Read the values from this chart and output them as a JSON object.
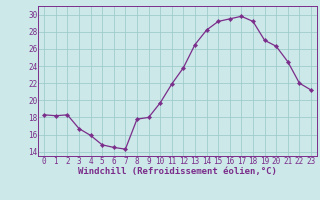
{
  "x": [
    0,
    1,
    2,
    3,
    4,
    5,
    6,
    7,
    8,
    9,
    10,
    11,
    12,
    13,
    14,
    15,
    16,
    17,
    18,
    19,
    20,
    21,
    22,
    23
  ],
  "y": [
    18.3,
    18.2,
    18.3,
    16.7,
    15.9,
    14.8,
    14.5,
    14.3,
    17.8,
    18.0,
    19.7,
    21.9,
    23.8,
    26.5,
    28.2,
    29.2,
    29.5,
    29.8,
    29.2,
    27.0,
    26.3,
    24.5,
    22.0,
    21.2
  ],
  "line_color": "#7B2D8B",
  "marker": "D",
  "marker_size": 2.2,
  "bg_color": "#cce8e8",
  "grid_color": "#a0cccc",
  "xlabel": "Windchill (Refroidissement éolien,°C)",
  "ylim": [
    13.5,
    31
  ],
  "yticks": [
    14,
    16,
    18,
    20,
    22,
    24,
    26,
    28,
    30
  ],
  "xlim": [
    -0.5,
    23.5
  ],
  "xticks": [
    0,
    1,
    2,
    3,
    4,
    5,
    6,
    7,
    8,
    9,
    10,
    11,
    12,
    13,
    14,
    15,
    16,
    17,
    18,
    19,
    20,
    21,
    22,
    23
  ],
  "tick_fontsize": 5.5,
  "xlabel_fontsize": 6.5
}
